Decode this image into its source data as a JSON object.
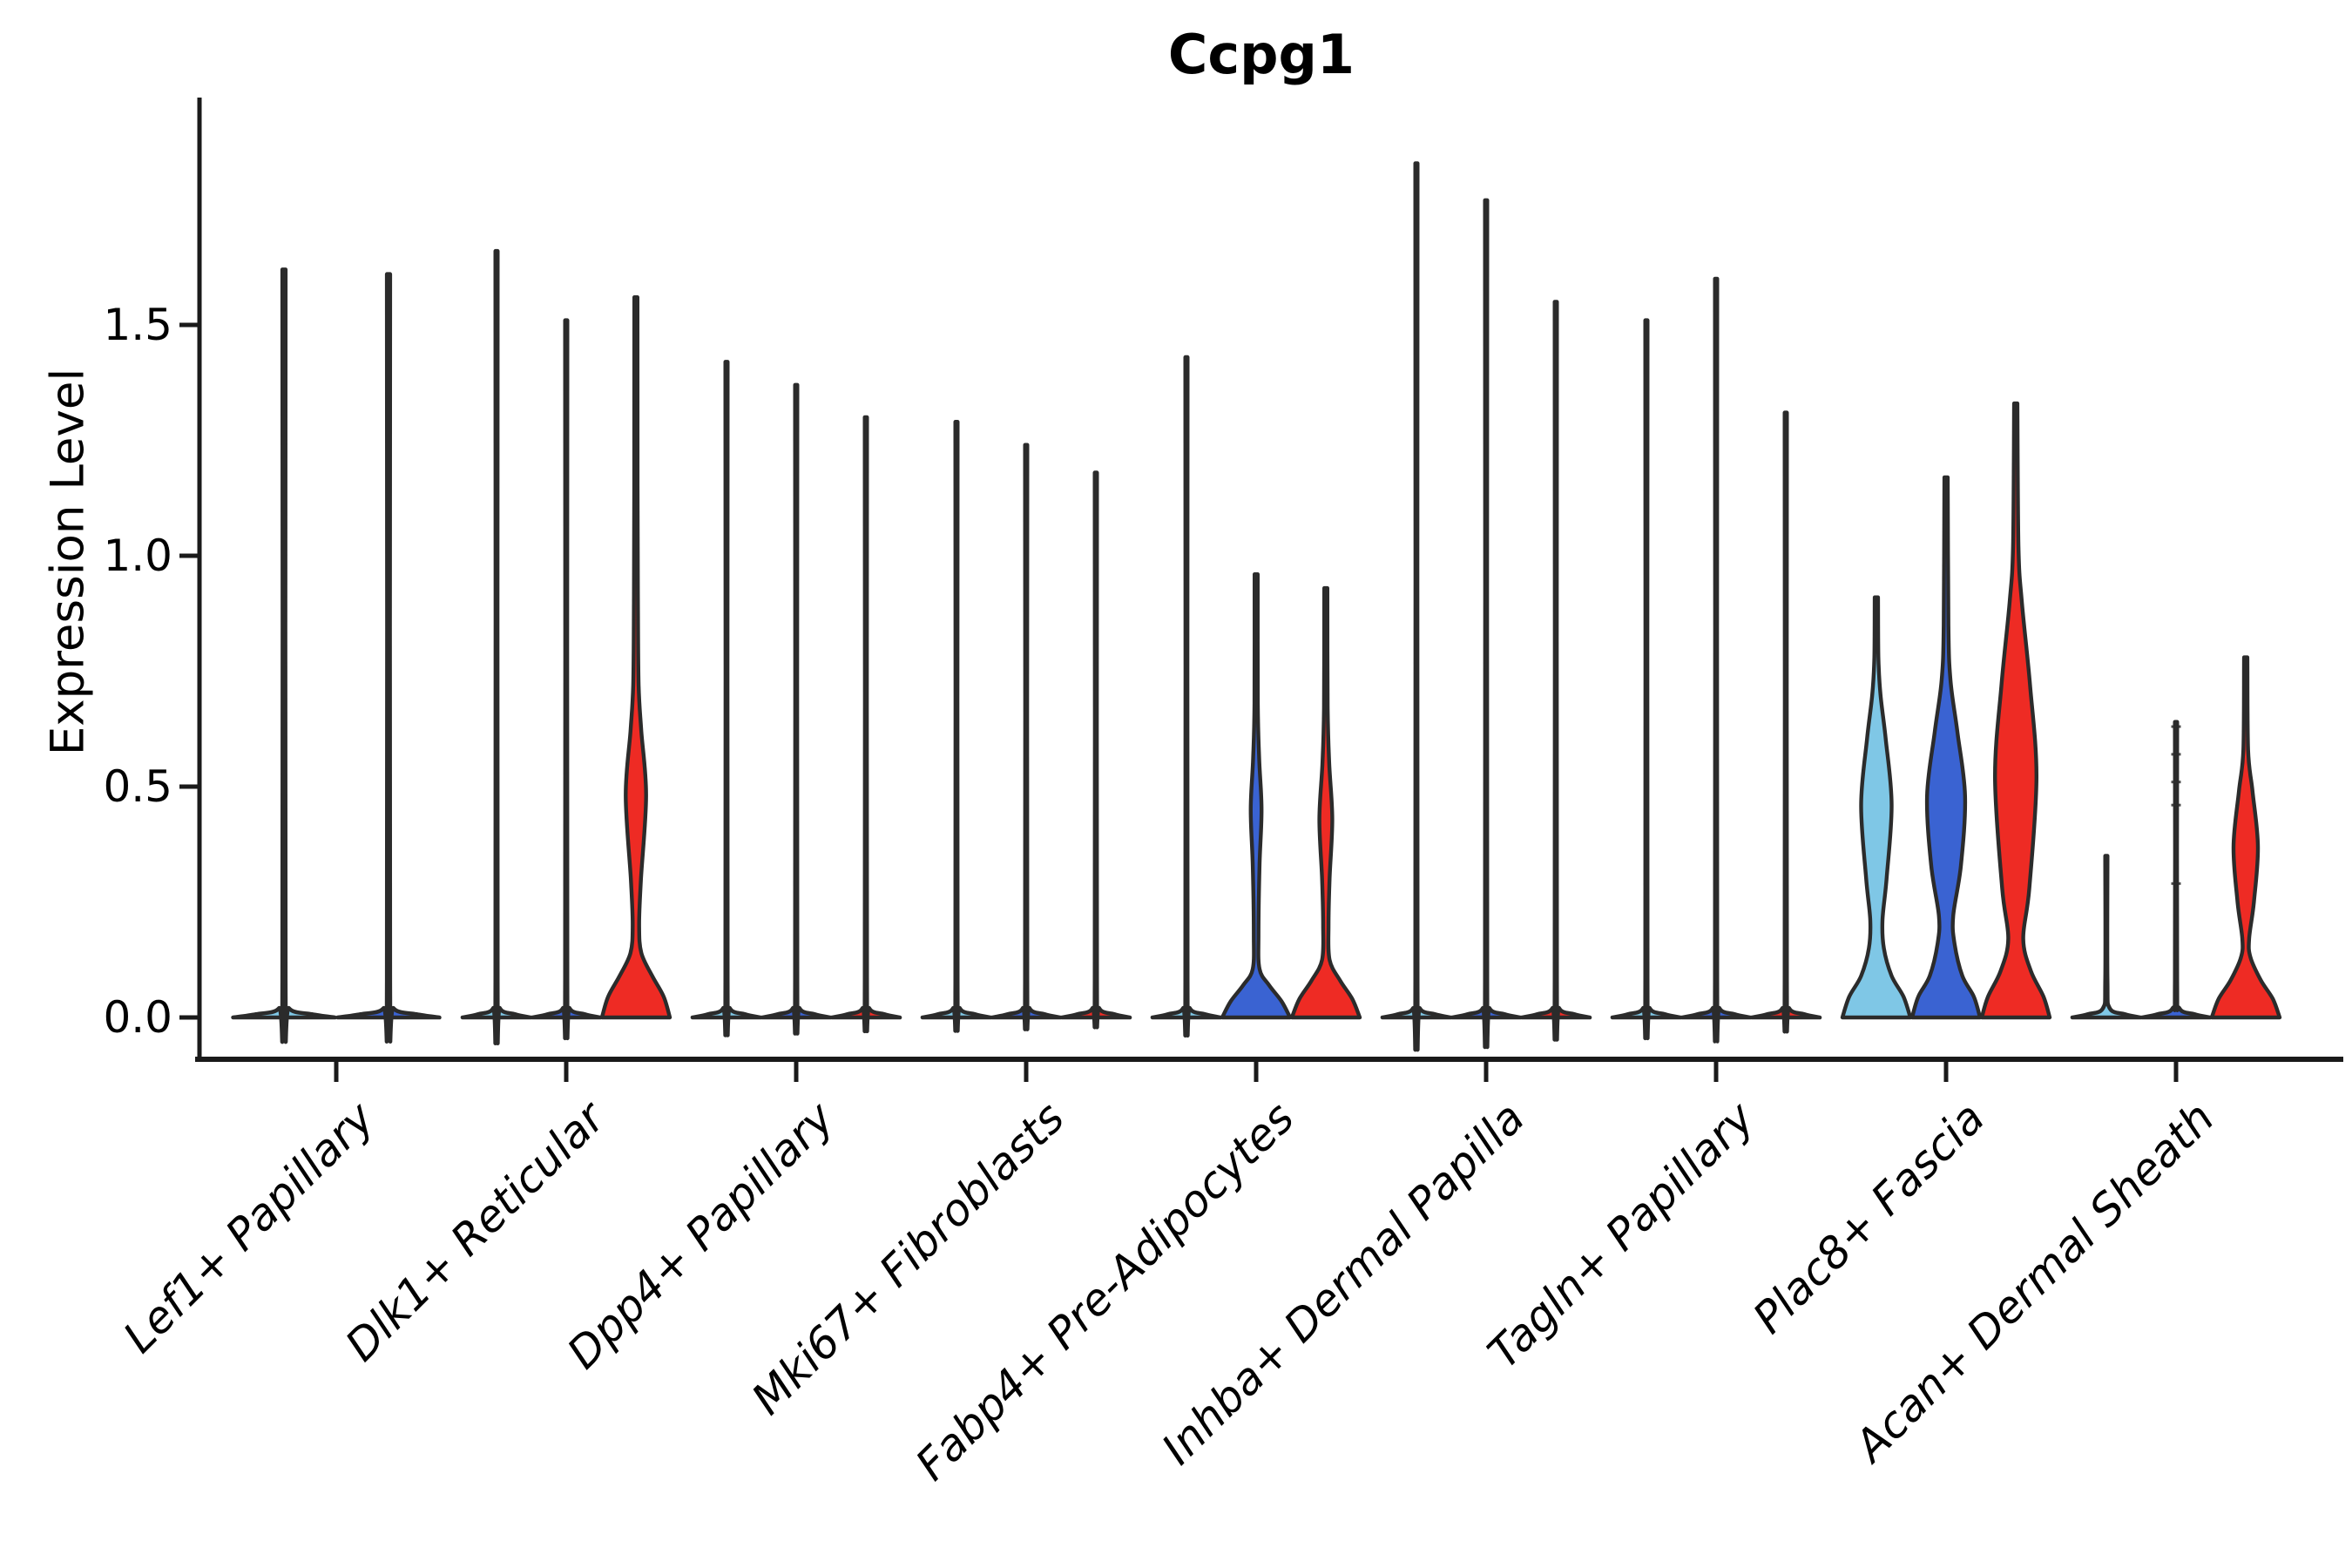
{
  "chart_data": {
    "type": "violin",
    "title": "Ccpg1",
    "ylabel": "Expression Level",
    "xlabel": "",
    "ylim": [
      0,
      2.0
    ],
    "grid": false,
    "legend": "none",
    "yticks": [
      0,
      0.5,
      1.0,
      1.5
    ],
    "ytick_labels": [
      "0.0",
      "0.5",
      "1.0",
      "1.5"
    ],
    "split_colors": {
      "light_blue": "#7FC7E6",
      "blue": "#3A63D2",
      "red": "#EE2B24",
      "outline": "#2B2B2B",
      "axis": "#1a1a1a"
    },
    "categories": [
      {
        "label": "Lef1+ Papillary",
        "violins": [
          {
            "split": "light_blue",
            "type": "spike",
            "max": 1.62
          },
          {
            "split": "blue",
            "type": "spike",
            "max": 1.61
          }
        ]
      },
      {
        "label": "Dlk1+ Reticular",
        "violins": [
          {
            "split": "light_blue",
            "type": "spike",
            "max": 1.66
          },
          {
            "split": "blue",
            "type": "spike",
            "max": 1.51
          },
          {
            "split": "red",
            "type": "body",
            "max": 1.56,
            "profile": [
              [
                0,
                1.0
              ],
              [
                0.045,
                0.82
              ],
              [
                0.09,
                0.48
              ],
              [
                0.14,
                0.16
              ],
              [
                0.2,
                0.095
              ],
              [
                0.3,
                0.15
              ],
              [
                0.48,
                0.3
              ],
              [
                0.62,
                0.16
              ],
              [
                0.72,
                0.08
              ],
              [
                0.9,
                0.06
              ],
              [
                1.15,
                0.05
              ],
              [
                1.56,
                0.045
              ]
            ]
          }
        ]
      },
      {
        "label": "Dpp4+ Papillary",
        "violins": [
          {
            "split": "light_blue",
            "type": "spike",
            "max": 1.42
          },
          {
            "split": "blue",
            "type": "spike",
            "max": 1.37
          },
          {
            "split": "red",
            "type": "spike",
            "max": 1.3
          }
        ]
      },
      {
        "label": "Mki67+ Fibroblasts",
        "violins": [
          {
            "split": "light_blue",
            "type": "spike",
            "max": 1.29
          },
          {
            "split": "blue",
            "type": "spike",
            "max": 1.24
          },
          {
            "split": "red",
            "type": "spike",
            "max": 1.18
          }
        ]
      },
      {
        "label": "Fabp4+ Pre-Adipocytes",
        "violins": [
          {
            "split": "light_blue",
            "type": "spike",
            "max": 1.43
          },
          {
            "split": "blue",
            "type": "body",
            "max": 0.96,
            "profile": [
              [
                0,
                1.0
              ],
              [
                0.035,
                0.75
              ],
              [
                0.07,
                0.38
              ],
              [
                0.105,
                0.1
              ],
              [
                0.18,
                0.07
              ],
              [
                0.33,
                0.1
              ],
              [
                0.45,
                0.16
              ],
              [
                0.56,
                0.09
              ],
              [
                0.68,
                0.05
              ],
              [
                0.96,
                0.045
              ]
            ]
          },
          {
            "split": "red",
            "type": "body",
            "max": 0.93,
            "profile": [
              [
                0,
                1.0
              ],
              [
                0.04,
                0.78
              ],
              [
                0.08,
                0.42
              ],
              [
                0.125,
                0.11
              ],
              [
                0.2,
                0.08
              ],
              [
                0.3,
                0.11
              ],
              [
                0.43,
                0.19
              ],
              [
                0.55,
                0.1
              ],
              [
                0.67,
                0.055
              ],
              [
                0.93,
                0.045
              ]
            ]
          }
        ]
      },
      {
        "label": "Inhba+ Dermal Papilla",
        "violins": [
          {
            "split": "light_blue",
            "type": "spike",
            "max": 1.85
          },
          {
            "split": "blue",
            "type": "spike",
            "max": 1.77
          },
          {
            "split": "red",
            "type": "spike",
            "max": 1.55
          }
        ]
      },
      {
        "label": "Tagln+ Papillary",
        "violins": [
          {
            "split": "light_blue",
            "type": "spike",
            "max": 1.51
          },
          {
            "split": "blue",
            "type": "spike",
            "max": 1.6
          },
          {
            "split": "red",
            "type": "spike",
            "max": 1.31
          }
        ]
      },
      {
        "label": "Plac8+ Fascia",
        "violins": [
          {
            "split": "light_blue",
            "type": "body",
            "max": 0.91,
            "profile": [
              [
                0,
                1.0
              ],
              [
                0.045,
                0.8
              ],
              [
                0.09,
                0.45
              ],
              [
                0.15,
                0.22
              ],
              [
                0.21,
                0.18
              ],
              [
                0.3,
                0.3
              ],
              [
                0.46,
                0.45
              ],
              [
                0.6,
                0.28
              ],
              [
                0.7,
                0.12
              ],
              [
                0.78,
                0.06
              ],
              [
                0.91,
                0.05
              ]
            ]
          },
          {
            "split": "blue",
            "type": "body",
            "max": 1.17,
            "profile": [
              [
                0,
                1.0
              ],
              [
                0.045,
                0.82
              ],
              [
                0.09,
                0.48
              ],
              [
                0.16,
                0.25
              ],
              [
                0.22,
                0.21
              ],
              [
                0.33,
                0.44
              ],
              [
                0.48,
                0.56
              ],
              [
                0.62,
                0.33
              ],
              [
                0.73,
                0.13
              ],
              [
                0.85,
                0.07
              ],
              [
                1.17,
                0.05
              ]
            ]
          },
          {
            "split": "red",
            "type": "body",
            "max": 1.33,
            "profile": [
              [
                0,
                1.0
              ],
              [
                0.045,
                0.82
              ],
              [
                0.1,
                0.45
              ],
              [
                0.17,
                0.22
              ],
              [
                0.28,
                0.4
              ],
              [
                0.52,
                0.61
              ],
              [
                0.72,
                0.42
              ],
              [
                0.9,
                0.18
              ],
              [
                1.02,
                0.08
              ],
              [
                1.33,
                0.05
              ]
            ]
          }
        ]
      },
      {
        "label": "Acan+ Dermal Sheath",
        "violins": [
          {
            "split": "light_blue",
            "type": "spike",
            "max": 0.35
          },
          {
            "split": "blue",
            "type": "spike",
            "max": 0.64,
            "tick_marks": [
              0.29,
              0.46,
              0.51,
              0.57,
              0.63
            ]
          },
          {
            "split": "red",
            "type": "body",
            "max": 0.78,
            "profile": [
              [
                0,
                1.0
              ],
              [
                0.04,
                0.8
              ],
              [
                0.08,
                0.45
              ],
              [
                0.13,
                0.14
              ],
              [
                0.17,
                0.1
              ],
              [
                0.25,
                0.24
              ],
              [
                0.37,
                0.36
              ],
              [
                0.49,
                0.2
              ],
              [
                0.58,
                0.07
              ],
              [
                0.78,
                0.05
              ]
            ]
          }
        ]
      }
    ]
  }
}
